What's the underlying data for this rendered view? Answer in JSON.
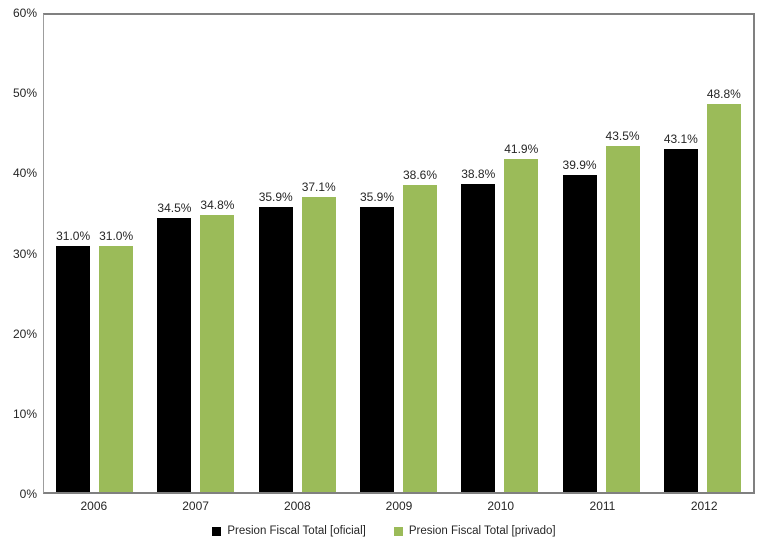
{
  "chart_data": {
    "type": "bar",
    "title": "",
    "xlabel": "",
    "ylabel": "",
    "categories": [
      "2006",
      "2007",
      "2008",
      "2009",
      "2010",
      "2011",
      "2012"
    ],
    "series": [
      {
        "name": "Presion Fiscal Total [oficial]",
        "color": "#000000",
        "values": [
          31.0,
          34.5,
          35.9,
          35.9,
          38.8,
          39.9,
          43.1
        ],
        "labels": [
          "31.0%",
          "34.5%",
          "35.9%",
          "35.9%",
          "38.8%",
          "39.9%",
          "43.1%"
        ]
      },
      {
        "name": "Presion Fiscal Total [privado]",
        "color": "#9BBB59",
        "values": [
          31.0,
          34.8,
          37.1,
          38.6,
          41.9,
          43.5,
          48.8
        ],
        "labels": [
          "31.0%",
          "34.8%",
          "37.1%",
          "38.6%",
          "41.9%",
          "43.5%",
          "48.8%"
        ]
      }
    ],
    "ylim": [
      0,
      60
    ],
    "y_ticks": [
      {
        "value": 0,
        "label": "0%"
      },
      {
        "value": 10,
        "label": "10%"
      },
      {
        "value": 20,
        "label": "20%"
      },
      {
        "value": 30,
        "label": "30%"
      },
      {
        "value": 40,
        "label": "40%"
      },
      {
        "value": 50,
        "label": "50%"
      },
      {
        "value": 60,
        "label": "60%"
      }
    ],
    "grid": false,
    "legend_position": "bottom",
    "plot_border_color": "#808080",
    "background_color": "#ffffff",
    "text_color": "#262626"
  }
}
